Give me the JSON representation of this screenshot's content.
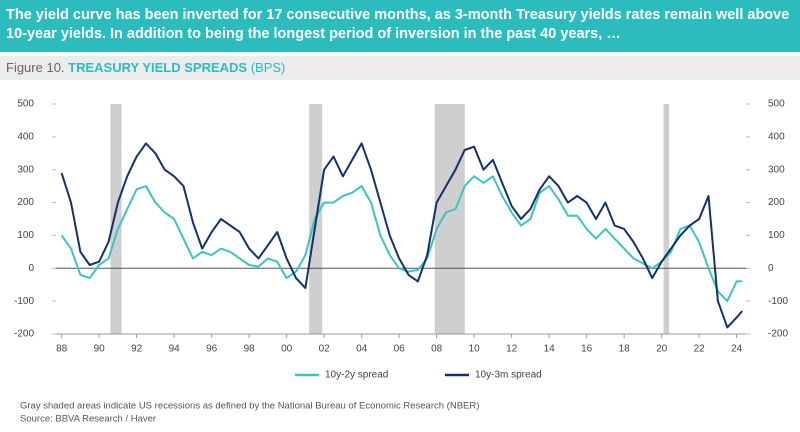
{
  "header": {
    "text": "The yield curve has been inverted for 17 consecutive months, as 3-month Treasury yields rates remain well above 10-year yields. In addition to being the longest period of inversion in the past 40 years, …"
  },
  "figure": {
    "number": "Figure 10.",
    "title": "TREASURY YIELD SPREADS",
    "unit": "(BPS)"
  },
  "chart_data": {
    "type": "line",
    "x": [
      1988,
      1988.5,
      1989,
      1989.5,
      1990,
      1990.5,
      1991,
      1991.5,
      1992,
      1992.5,
      1993,
      1993.5,
      1994,
      1994.5,
      1995,
      1995.5,
      1996,
      1996.5,
      1997,
      1997.5,
      1998,
      1998.5,
      1999,
      1999.5,
      2000,
      2000.5,
      2001,
      2001.5,
      2002,
      2002.5,
      2003,
      2003.5,
      2004,
      2004.5,
      2005,
      2005.5,
      2006,
      2006.5,
      2007,
      2007.5,
      2008,
      2008.5,
      2009,
      2009.5,
      2010,
      2010.5,
      2011,
      2011.5,
      2012,
      2012.5,
      2013,
      2013.5,
      2014,
      2014.5,
      2015,
      2015.5,
      2016,
      2016.5,
      2017,
      2017.5,
      2018,
      2018.5,
      2019,
      2019.5,
      2020,
      2020.5,
      2021,
      2021.5,
      2022,
      2022.5,
      2023,
      2023.5,
      2024,
      2024.3
    ],
    "series": [
      {
        "name": "10y-2y spread",
        "color": "#3cc4c0",
        "values": [
          100,
          60,
          -20,
          -30,
          10,
          30,
          120,
          180,
          240,
          250,
          200,
          170,
          150,
          90,
          30,
          50,
          40,
          60,
          50,
          30,
          10,
          5,
          30,
          20,
          -30,
          -10,
          40,
          150,
          200,
          200,
          220,
          230,
          250,
          200,
          100,
          40,
          0,
          -10,
          -5,
          30,
          120,
          170,
          180,
          250,
          280,
          260,
          280,
          220,
          170,
          130,
          150,
          230,
          250,
          210,
          160,
          160,
          120,
          90,
          120,
          90,
          60,
          30,
          15,
          0,
          20,
          50,
          120,
          130,
          80,
          0,
          -70,
          -100,
          -40,
          -40
        ]
      },
      {
        "name": "10y-3m spread",
        "color": "#15306b",
        "values": [
          290,
          200,
          50,
          10,
          20,
          80,
          200,
          280,
          340,
          380,
          350,
          300,
          280,
          250,
          140,
          60,
          110,
          150,
          130,
          110,
          60,
          30,
          70,
          110,
          30,
          -30,
          -60,
          120,
          300,
          340,
          280,
          330,
          380,
          300,
          200,
          100,
          30,
          -20,
          -40,
          40,
          200,
          250,
          300,
          360,
          370,
          300,
          330,
          260,
          190,
          150,
          180,
          240,
          280,
          250,
          200,
          220,
          200,
          150,
          200,
          130,
          120,
          80,
          30,
          -30,
          20,
          60,
          100,
          130,
          150,
          220,
          -100,
          -180,
          -150,
          -130
        ]
      }
    ],
    "recessions": [
      [
        1990.6,
        1991.2
      ],
      [
        2001.2,
        2001.9
      ],
      [
        2007.9,
        2009.5
      ],
      [
        2020.1,
        2020.4
      ]
    ],
    "recession_color": "#cfcfcf",
    "xlim": [
      1987.7,
      2024.5
    ],
    "xticks": [
      {
        "value": 1988,
        "label": "88"
      },
      {
        "value": 1990,
        "label": "90"
      },
      {
        "value": 1992,
        "label": "92"
      },
      {
        "value": 1994,
        "label": "94"
      },
      {
        "value": 1996,
        "label": "96"
      },
      {
        "value": 1998,
        "label": "98"
      },
      {
        "value": 2000,
        "label": "00"
      },
      {
        "value": 2002,
        "label": "02"
      },
      {
        "value": 2004,
        "label": "04"
      },
      {
        "value": 2006,
        "label": "06"
      },
      {
        "value": 2008,
        "label": "08"
      },
      {
        "value": 2010,
        "label": "10"
      },
      {
        "value": 2012,
        "label": "12"
      },
      {
        "value": 2014,
        "label": "14"
      },
      {
        "value": 2016,
        "label": "16"
      },
      {
        "value": 2018,
        "label": "18"
      },
      {
        "value": 2020,
        "label": "20"
      },
      {
        "value": 2022,
        "label": "22"
      },
      {
        "value": 2024,
        "label": "24"
      }
    ],
    "ylim": [
      -200,
      500
    ],
    "yticks": [
      -200,
      -100,
      0,
      100,
      200,
      300,
      400,
      500
    ],
    "y2lim": [
      -200,
      500
    ],
    "y2ticks": [
      -200,
      -100,
      0,
      100,
      200,
      300,
      400,
      500
    ],
    "grid": false
  },
  "footnote": [
    "Gray shaded areas indicate US recessions as defined by the National Bureau of Economic Research (NBER)",
    "Source: BBVA Research / Haver"
  ]
}
